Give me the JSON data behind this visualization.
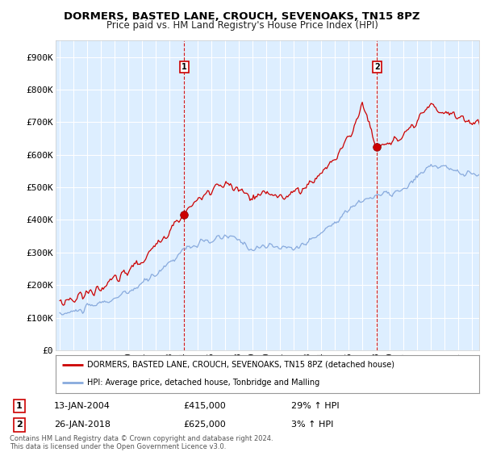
{
  "title": "DORMERS, BASTED LANE, CROUCH, SEVENOAKS, TN15 8PZ",
  "subtitle": "Price paid vs. HM Land Registry's House Price Index (HPI)",
  "ylim": [
    0,
    950000
  ],
  "yticks": [
    0,
    100000,
    200000,
    300000,
    400000,
    500000,
    600000,
    700000,
    800000,
    900000
  ],
  "ytick_labels": [
    "£0",
    "£100K",
    "£200K",
    "£300K",
    "£400K",
    "£500K",
    "£600K",
    "£700K",
    "£800K",
    "£900K"
  ],
  "background_color": "#ffffff",
  "plot_bg_color": "#ddeeff",
  "legend_line1": "DORMERS, BASTED LANE, CROUCH, SEVENOAKS, TN15 8PZ (detached house)",
  "legend_line2": "HPI: Average price, detached house, Tonbridge and Malling",
  "annotation1_label": "1",
  "annotation1_date": "13-JAN-2004",
  "annotation1_price": "£415,000",
  "annotation1_hpi": "29% ↑ HPI",
  "annotation2_label": "2",
  "annotation2_date": "26-JAN-2018",
  "annotation2_price": "£625,000",
  "annotation2_hpi": "3% ↑ HPI",
  "footer": "Contains HM Land Registry data © Crown copyright and database right 2024.\nThis data is licensed under the Open Government Licence v3.0.",
  "red_color": "#cc0000",
  "blue_color": "#88aadd",
  "marker1_x": 2004.04,
  "marker1_y": 415000,
  "marker2_x": 2018.07,
  "marker2_y": 625000,
  "xlim_left": 1994.7,
  "xlim_right": 2025.5
}
